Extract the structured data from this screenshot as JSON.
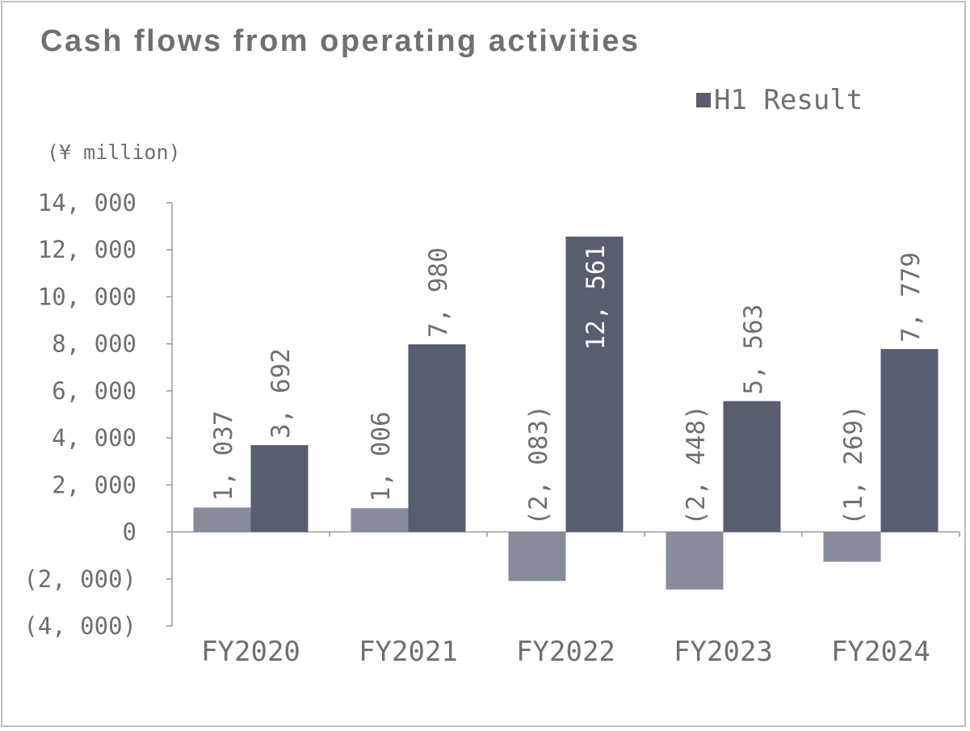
{
  "chart_data": {
    "type": "bar",
    "title": "Cash flows from operating activities",
    "unit_label": "(¥ million)",
    "categories": [
      "FY2020",
      "FY2021",
      "FY2022",
      "FY2023",
      "FY2024"
    ],
    "series": [
      {
        "name": "",
        "values": [
          1037,
          1006,
          -2083,
          -2448,
          -1269
        ],
        "labels": [
          "1, 037",
          "1, 006",
          "(2, 083)",
          "(2, 448)",
          "(1, 269)"
        ],
        "color": "#878b9a",
        "label_color": "#707070"
      },
      {
        "name": "H1 Result",
        "values": [
          3692,
          7980,
          12561,
          5563,
          7779
        ],
        "labels": [
          "3, 692",
          "7, 980",
          "12, 561",
          "5, 563",
          "7, 779"
        ],
        "color": "#595e6e",
        "label_color": "#707070",
        "inside_label_color": "#ffffff"
      }
    ],
    "ylim": [
      -4000,
      14000
    ],
    "yticks": [
      14000,
      12000,
      10000,
      8000,
      6000,
      4000,
      2000,
      0,
      -2000,
      -4000
    ],
    "ytick_labels": [
      "14, 000",
      "12, 000",
      "10, 000",
      "8, 000",
      "6, 000",
      "4, 000",
      "2, 000",
      "0",
      "(2, 000)",
      "(4, 000)"
    ],
    "grid": false,
    "legend_position": "top-right"
  }
}
